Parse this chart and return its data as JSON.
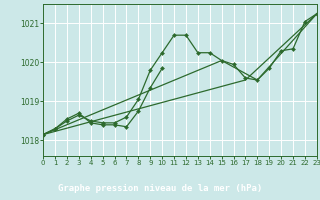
{
  "bg_color": "#cce8e8",
  "label_bg_color": "#2d6a2d",
  "grid_color": "#ffffff",
  "line_color": "#2d6a2d",
  "marker_color": "#2d6a2d",
  "xlabel": "Graphe pression niveau de la mer (hPa)",
  "xlabel_color": "#ffffff",
  "xlim": [
    0,
    23
  ],
  "ylim": [
    1017.6,
    1021.5
  ],
  "yticks": [
    1018,
    1019,
    1020,
    1021
  ],
  "xticks": [
    0,
    1,
    2,
    3,
    4,
    5,
    6,
    7,
    8,
    9,
    10,
    11,
    12,
    13,
    14,
    15,
    16,
    17,
    18,
    19,
    20,
    21,
    22,
    23
  ],
  "series": [
    [
      1018.15,
      1018.3,
      1018.5,
      1018.65,
      1018.5,
      1018.45,
      1018.45,
      1018.6,
      1019.05,
      1019.8,
      1020.25,
      1020.7,
      1020.7,
      1020.25,
      1020.25,
      1020.05,
      1019.95,
      1019.6,
      1019.55,
      1019.85,
      1020.3,
      1020.35,
      1021.05,
      1021.25
    ],
    [
      1018.15,
      1018.3,
      1018.55,
      1018.7,
      1018.45,
      1018.4,
      1018.4,
      1018.35,
      1018.75,
      1019.35,
      1019.85,
      null,
      null,
      null,
      null,
      null,
      null,
      null,
      null,
      null,
      null,
      null,
      null,
      null
    ],
    [
      1018.15,
      null,
      null,
      null,
      null,
      null,
      null,
      null,
      null,
      null,
      null,
      null,
      null,
      null,
      null,
      1020.05,
      null,
      null,
      1019.55,
      null,
      null,
      null,
      null,
      1021.25
    ],
    [
      1018.15,
      null,
      null,
      null,
      null,
      null,
      null,
      null,
      null,
      null,
      null,
      null,
      null,
      null,
      null,
      null,
      null,
      1019.55,
      null,
      null,
      null,
      null,
      null,
      1021.25
    ]
  ]
}
